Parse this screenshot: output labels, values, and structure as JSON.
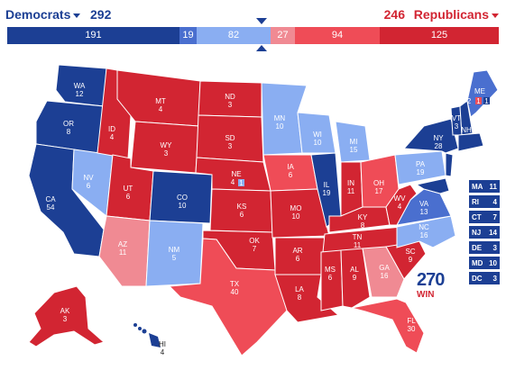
{
  "header": {
    "dem_label": "Democrats",
    "rep_label": "Republicans",
    "dem_total": "292",
    "rep_total": "246"
  },
  "bar": [
    {
      "value": "191",
      "color": "#1c3f94"
    },
    {
      "value": "19",
      "color": "#4a6fcf"
    },
    {
      "value": "82",
      "color": "#8aaef2"
    },
    {
      "value": "27",
      "color": "#f08a93"
    },
    {
      "value": "94",
      "color": "#ef4c57"
    },
    {
      "value": "125",
      "color": "#d22532"
    }
  ],
  "colors": {
    "safe_dem": "#1c3f94",
    "likely_dem": "#4a6fcf",
    "lean_dem": "#8aaef2",
    "lean_rep": "#f08a93",
    "likely_rep": "#ef4c57",
    "safe_rep": "#d22532"
  },
  "states": [
    {
      "abbr": "WA",
      "votes": "12"
    },
    {
      "abbr": "OR",
      "votes": "8"
    },
    {
      "abbr": "CA",
      "votes": "54"
    },
    {
      "abbr": "NV",
      "votes": "6"
    },
    {
      "abbr": "ID",
      "votes": "4"
    },
    {
      "abbr": "MT",
      "votes": "4"
    },
    {
      "abbr": "WY",
      "votes": "3"
    },
    {
      "abbr": "UT",
      "votes": "6"
    },
    {
      "abbr": "AZ",
      "votes": "11"
    },
    {
      "abbr": "CO",
      "votes": "10"
    },
    {
      "abbr": "NM",
      "votes": "5"
    },
    {
      "abbr": "ND",
      "votes": "3"
    },
    {
      "abbr": "SD",
      "votes": "3"
    },
    {
      "abbr": "NE",
      "votes": "4"
    },
    {
      "abbr": "KS",
      "votes": "6"
    },
    {
      "abbr": "OK",
      "votes": "7"
    },
    {
      "abbr": "TX",
      "votes": "40"
    },
    {
      "abbr": "MN",
      "votes": "10"
    },
    {
      "abbr": "IA",
      "votes": "6"
    },
    {
      "abbr": "MO",
      "votes": "10"
    },
    {
      "abbr": "AR",
      "votes": "6"
    },
    {
      "abbr": "LA",
      "votes": "8"
    },
    {
      "abbr": "WI",
      "votes": "10"
    },
    {
      "abbr": "IL",
      "votes": "19"
    },
    {
      "abbr": "MI",
      "votes": "15"
    },
    {
      "abbr": "IN",
      "votes": "11"
    },
    {
      "abbr": "OH",
      "votes": "17"
    },
    {
      "abbr": "KY",
      "votes": "8"
    },
    {
      "abbr": "TN",
      "votes": "11"
    },
    {
      "abbr": "MS",
      "votes": "6"
    },
    {
      "abbr": "AL",
      "votes": "9"
    },
    {
      "abbr": "GA",
      "votes": "16"
    },
    {
      "abbr": "FL",
      "votes": "30"
    },
    {
      "abbr": "SC",
      "votes": "9"
    },
    {
      "abbr": "NC",
      "votes": "16"
    },
    {
      "abbr": "VA",
      "votes": "13"
    },
    {
      "abbr": "WV",
      "votes": "4"
    },
    {
      "abbr": "PA",
      "votes": "19"
    },
    {
      "abbr": "NY",
      "votes": "28"
    },
    {
      "abbr": "VT",
      "votes": "3"
    },
    {
      "abbr": "NH",
      "votes": "4"
    },
    {
      "abbr": "ME",
      "votes": "2"
    },
    {
      "abbr": "AK",
      "votes": "3"
    },
    {
      "abbr": "HI",
      "votes": "4"
    }
  ],
  "maine_districts": [
    "1",
    "1"
  ],
  "nebraska_district": "1",
  "small_states": [
    {
      "abbr": "MA",
      "votes": "11"
    },
    {
      "abbr": "RI",
      "votes": "4"
    },
    {
      "abbr": "CT",
      "votes": "7"
    },
    {
      "abbr": "NJ",
      "votes": "14"
    },
    {
      "abbr": "DE",
      "votes": "3"
    },
    {
      "abbr": "MD",
      "votes": "10"
    },
    {
      "abbr": "DC",
      "votes": "3"
    }
  ],
  "logo": {
    "number": "270",
    "text": "WIN"
  }
}
